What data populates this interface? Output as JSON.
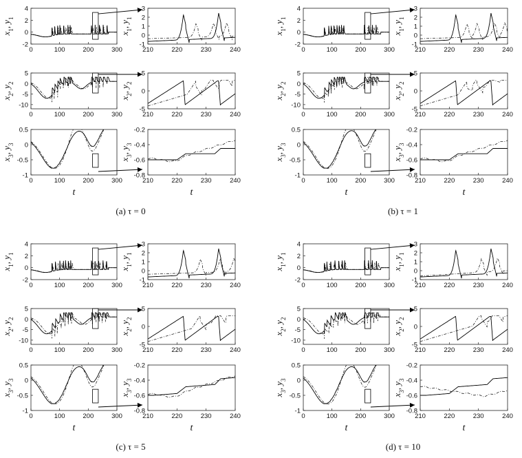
{
  "chart_data": {
    "type": "line",
    "description_series": [
      "solid: x_i",
      "dash-dot: y_i"
    ],
    "panels": [
      {
        "id": "a",
        "caption": "(a)  τ = 0"
      },
      {
        "id": "b",
        "caption": "(b)  τ = 1"
      },
      {
        "id": "c",
        "caption": "(c)  τ = 5"
      },
      {
        "id": "d",
        "caption": "(d)  τ = 10"
      }
    ],
    "rows": [
      {
        "ylabel": "x1, y1",
        "ylabel_main": "x",
        "ylabel_sub": "1",
        "ylabel_main2": "y",
        "ylabel_sub2": "1",
        "main": {
          "xlim": [
            0,
            300
          ],
          "ylim": [
            -2,
            4
          ],
          "xticks": [
            "0",
            "100",
            "200",
            "300"
          ],
          "yticks": [
            "4",
            "2",
            "0",
            "-2"
          ],
          "ytick_values": [
            4,
            2,
            0,
            -2
          ]
        },
        "zoom": {
          "xlim": [
            210,
            240
          ],
          "ylim": [
            -1,
            3
          ],
          "xticks": [
            "210",
            "220",
            "230",
            "240"
          ],
          "yticks": [
            "3",
            "2",
            "1",
            "0",
            "-1"
          ],
          "ytick_values": [
            3,
            2,
            1,
            0,
            -1
          ]
        },
        "box": {
          "x": [
            215,
            235
          ],
          "y": [
            -1.2,
            3.3
          ]
        }
      },
      {
        "ylabel": "x2, y2",
        "ylabel_main": "x",
        "ylabel_sub": "2",
        "ylabel_main2": "y",
        "ylabel_sub2": "2",
        "main": {
          "xlim": [
            0,
            300
          ],
          "ylim": [
            -12,
            5
          ],
          "xticks": [
            "0",
            "100",
            "200",
            "300"
          ],
          "yticks": [
            "5",
            "0",
            "-5",
            "-10"
          ],
          "ytick_values": [
            5,
            0,
            -5,
            -10
          ]
        },
        "zoom": {
          "xlim": [
            210,
            240
          ],
          "ylim": [
            -5,
            5
          ],
          "xticks": [
            "210",
            "220",
            "230",
            "240"
          ],
          "yticks": [
            "5",
            "0",
            "-5"
          ],
          "ytick_values": [
            5,
            0,
            -5
          ]
        },
        "box": {
          "x": [
            215,
            235
          ],
          "y": [
            -4.5,
            5
          ]
        }
      },
      {
        "ylabel": "x3, y3",
        "ylabel_main": "x",
        "ylabel_sub": "3",
        "ylabel_main2": "y",
        "ylabel_sub2": "3",
        "main": {
          "xlim": [
            0,
            300
          ],
          "ylim": [
            -1,
            0.5
          ],
          "xticks": [
            "0",
            "100",
            "200",
            "300"
          ],
          "yticks": [
            "0.5",
            "0",
            "-0.5",
            "-1"
          ],
          "ytick_values": [
            0.5,
            0,
            -0.5,
            -1
          ]
        },
        "zoom": {
          "xlim": [
            210,
            240
          ],
          "ylim": [
            -0.8,
            -0.2
          ],
          "xticks": [
            "210",
            "220",
            "230",
            "240"
          ],
          "yticks": [
            "-0.2",
            "-0.4",
            "-0.6",
            "-0.8"
          ],
          "ytick_values": [
            -0.2,
            -0.4,
            -0.6,
            -0.8
          ]
        },
        "box": {
          "x": [
            215,
            235
          ],
          "y": [
            -0.75,
            -0.3
          ]
        }
      }
    ],
    "xlabel": "t"
  }
}
